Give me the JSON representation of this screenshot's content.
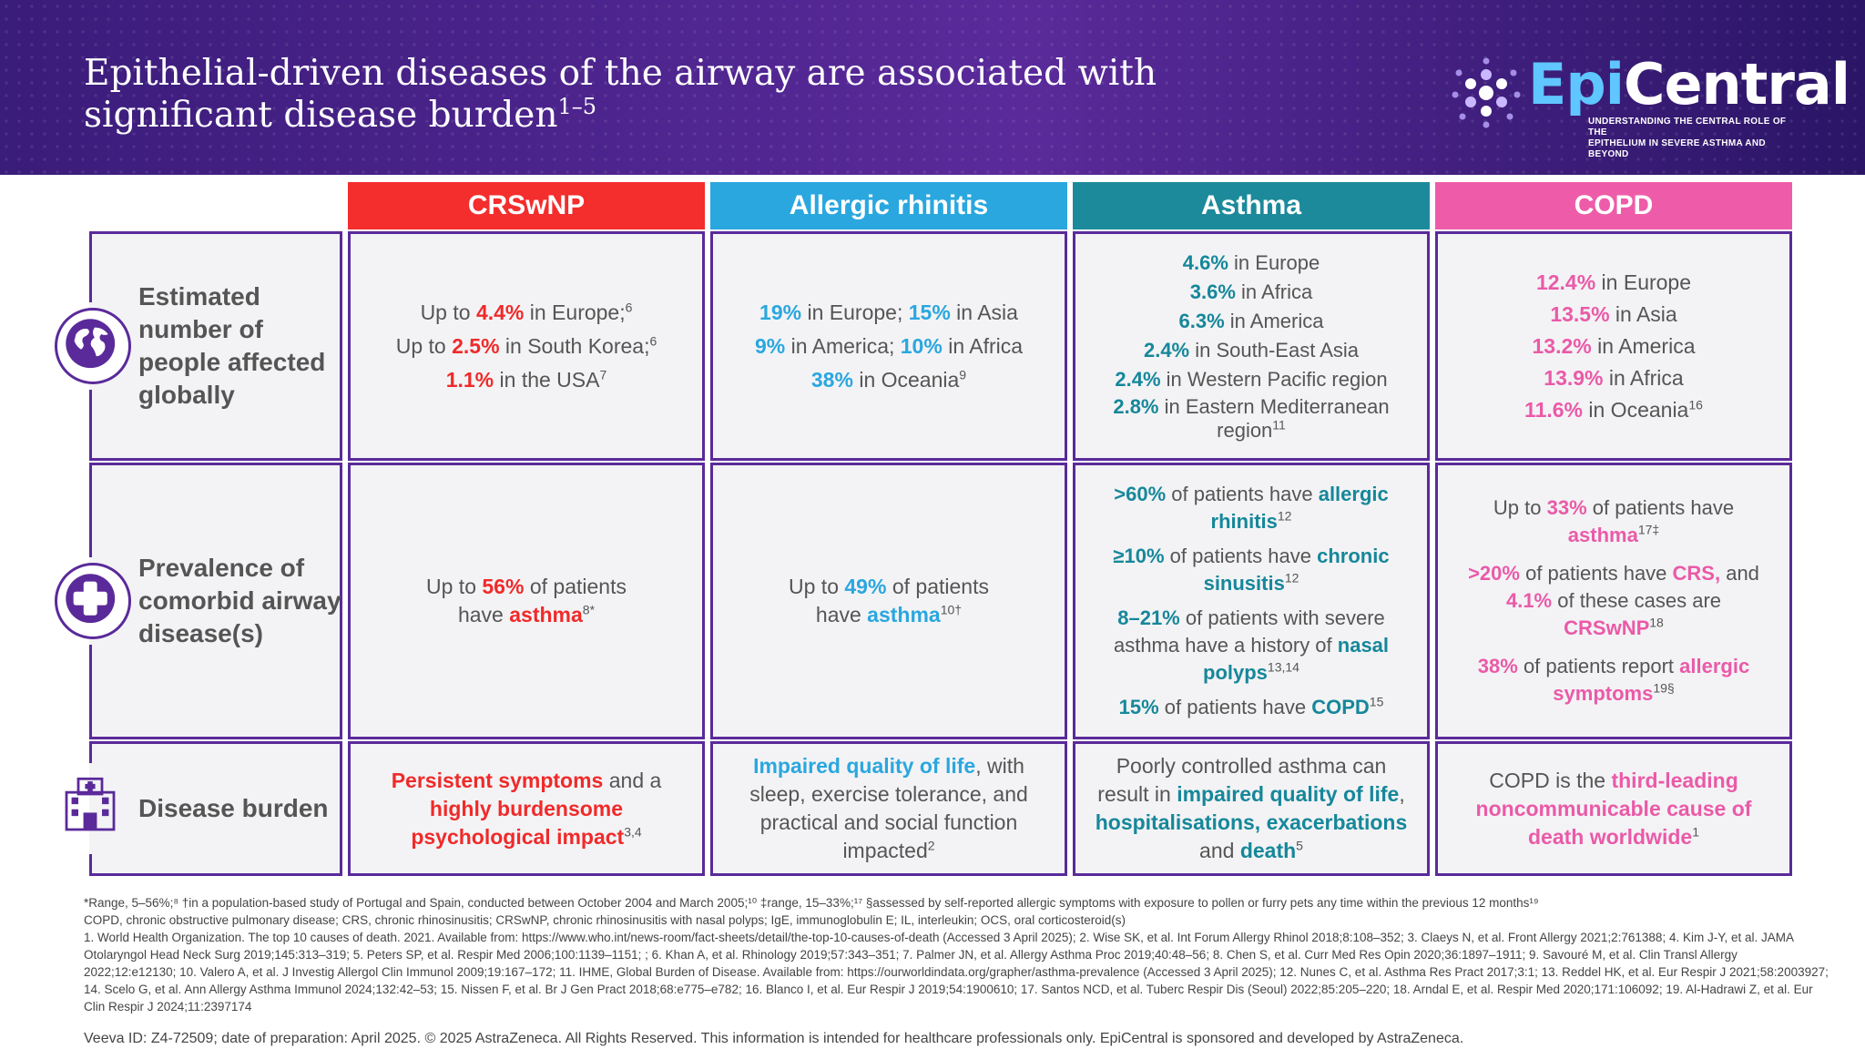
{
  "header": {
    "title": "Epithelial-driven diseases of the airway are associated with significant disease burden",
    "title_sup": "1–5",
    "logo": {
      "name_epi": "Epi",
      "name_central": "Central",
      "tagline_1": "UNDERSTANDING THE CENTRAL ROLE OF THE",
      "tagline_2": "EPITHELIUM IN SEVERE ASTHMA AND BEYOND"
    }
  },
  "columns": [
    {
      "label": "CRSwNP",
      "color": "#f42d2d"
    },
    {
      "label": "Allergic rhinitis",
      "color": "#2aa7df"
    },
    {
      "label": "Asthma",
      "color": "#1c8a9b"
    },
    {
      "label": "COPD",
      "color": "#ee5ca9"
    }
  ],
  "rows": [
    {
      "label": "Estimated number of people affected globally",
      "icon": "globe-icon"
    },
    {
      "label": "Prevalence of comorbid airway disease(s)",
      "icon": "medical-cross-icon"
    },
    {
      "label": "Disease burden",
      "icon": "hospital-icon"
    }
  ],
  "prevalence": {
    "crswnp": {
      "l1_a": "Up to ",
      "l1_b": "4.4%",
      "l1_c": " in Europe;",
      "l1_sup": "6",
      "l2_a": "Up to ",
      "l2_b": "2.5%",
      "l2_c": " in South Korea;",
      "l2_sup": "6",
      "l3_b": "1.1%",
      "l3_c": " in the USA",
      "l3_sup": "7"
    },
    "rhinitis": {
      "l1_a": "19%",
      "l1_b": " in Europe; ",
      "l1_c": "15%",
      "l1_d": " in Asia",
      "l2_a": "9%",
      "l2_b": " in America; ",
      "l2_c": "10%",
      "l2_d": " in Africa",
      "l3_a": "38%",
      "l3_b": " in Oceania",
      "l3_sup": "9"
    },
    "asthma": {
      "l1_a": "4.6%",
      "l1_b": " in Europe",
      "l2_a": "3.6%",
      "l2_b": " in Africa",
      "l3_a": "6.3%",
      "l3_b": " in America",
      "l4_a": "2.4%",
      "l4_b": " in South-East Asia",
      "l5_a": "2.4%",
      "l5_b": " in Western Pacific region",
      "l6_a": "2.8%",
      "l6_b": " in Eastern Mediterranean region",
      "l6_sup": "11"
    },
    "copd": {
      "l1_a": "12.4%",
      "l1_b": " in Europe",
      "l2_a": "13.5%",
      "l2_b": " in Asia",
      "l3_a": "13.2%",
      "l3_b": " in America",
      "l4_a": "13.9%",
      "l4_b": " in Africa",
      "l5_a": "11.6%",
      "l5_b": " in Oceania",
      "l5_sup": "16"
    }
  },
  "comorbid": {
    "crswnp": {
      "a": "Up to ",
      "b": "56%",
      "c": " of patients have ",
      "d": "asthma",
      "sup": "8*"
    },
    "rhinitis": {
      "a": "Up to ",
      "b": "49%",
      "c": " of patients have ",
      "d": "asthma",
      "sup": "10†"
    },
    "asthma": {
      "p1_a": ">60%",
      "p1_b": " of patients have ",
      "p1_c": "allergic rhinitis",
      "p1_sup": "12",
      "p2_a": "≥10%",
      "p2_b": " of patients have ",
      "p2_c": "chronic sinusitis",
      "p2_sup": "12",
      "p3_a": "8–21%",
      "p3_b": " of patients with severe asthma have a history of ",
      "p3_c": "nasal polyps",
      "p3_sup": "13,14",
      "p4_a": "15%",
      "p4_b": " of patients have ",
      "p4_c": "COPD",
      "p4_sup": "15"
    },
    "copd": {
      "p1_a": "Up to ",
      "p1_b": "33%",
      "p1_c": " of patients have ",
      "p1_d": "asthma",
      "p1_sup": "17‡",
      "p2_a": ">20%",
      "p2_b": " of patients have ",
      "p2_c": "CRS,",
      "p2_d": " and ",
      "p2_e": "4.1%",
      "p2_f": " of these cases are ",
      "p2_g": "CRSwNP",
      "p2_sup": "18",
      "p3_a": "38%",
      "p3_b": " of patients report ",
      "p3_c": "allergic symptoms",
      "p3_sup": "19§"
    }
  },
  "burden": {
    "crswnp": {
      "a": "Persistent symptoms",
      "b": " and a ",
      "c": "highly burdensome psychological impact",
      "sup": "3,4"
    },
    "rhinitis": {
      "a": "Impaired quality of life",
      "b": ", with sleep, exercise tolerance, and practical and social function impacted",
      "sup": "2"
    },
    "asthma": {
      "a": "Poorly controlled asthma can result in ",
      "b": "impaired quality of life",
      "c": ", ",
      "d": "hospitalisations, exacerbations",
      "e": " and ",
      "f": "death",
      "sup": "5"
    },
    "copd": {
      "a": "COPD is the ",
      "b": "third-leading noncommunicable cause of death worldwide",
      "sup": "1"
    }
  },
  "footnotes": {
    "line1": "*Range, 5–56%;⁸ †in a population-based study of Portugal and Spain, conducted between October 2004 and March 2005;¹⁰ ‡range, 15–33%;¹⁷ §assessed by self-reported allergic symptoms with exposure to pollen or furry pets any time within the previous 12 months¹⁹",
    "line2": "COPD, chronic obstructive pulmonary disease; CRS, chronic rhinosinusitis; CRSwNP, chronic rhinosinusitis with nasal polyps; IgE, immunoglobulin E; IL, interleukin; OCS, oral corticosteroid(s)",
    "refs": "1. World Health Organization. The top 10 causes of death. 2021. Available from: https://www.who.int/news-room/fact-sheets/detail/the-top-10-causes-of-death (Accessed 3 April 2025); 2. Wise SK, et al. Int Forum Allergy Rhinol 2018;8:108–352; 3. Claeys N, et al. Front Allergy 2021;2:761388; 4. Kim J-Y, et al. JAMA Otolaryngol Head Neck Surg 2019;145:313–319; 5. Peters SP, et al. Respir Med 2006;100:1139–1151; ; 6. Khan A, et al. Rhinology 2019;57:343–351; 7. Palmer JN, et al. Allergy Asthma Proc 2019;40:48–56; 8. Chen S, et al. Curr Med Res Opin 2020;36:1897–1911; 9. Savouré M, et al. Clin Transl Allergy 2022;12:e12130; 10. Valero A, et al. J Investig Allergol Clin Immunol 2009;19:167–172; 11. IHME, Global Burden of Disease. Available from: https://ourworldindata.org/grapher/asthma-prevalence (Accessed 3 April 2025); 12. Nunes C, et al. Asthma Res Pract 2017;3:1; 13. Reddel HK, et al. Eur Respir J 2021;58:2003927; 14. Scelo G, et al. Ann Allergy Asthma Immunol 2024;132:42–53; 15. Nissen F, et al. Br J Gen Pract 2018;68:e775–e782; 16. Blanco I, et al. Eur Respir J 2019;54:1900610; 17. Santos NCD, et al. Tuberc Respir Dis (Seoul) 2022;85:205–220; 18. Arndal E, et al. Respir Med 2020;171:106092; 19. Al-Hadrawi Z, et al. Eur Clin Respir J 2024;11:2397174"
  },
  "footer": "Veeva ID: Z4-72509; date of preparation: April 2025. © 2025 AstraZeneca. All Rights Reserved. This information is intended for healthcare professionals only. EpiCentral is sponsored and developed by AstraZeneca."
}
